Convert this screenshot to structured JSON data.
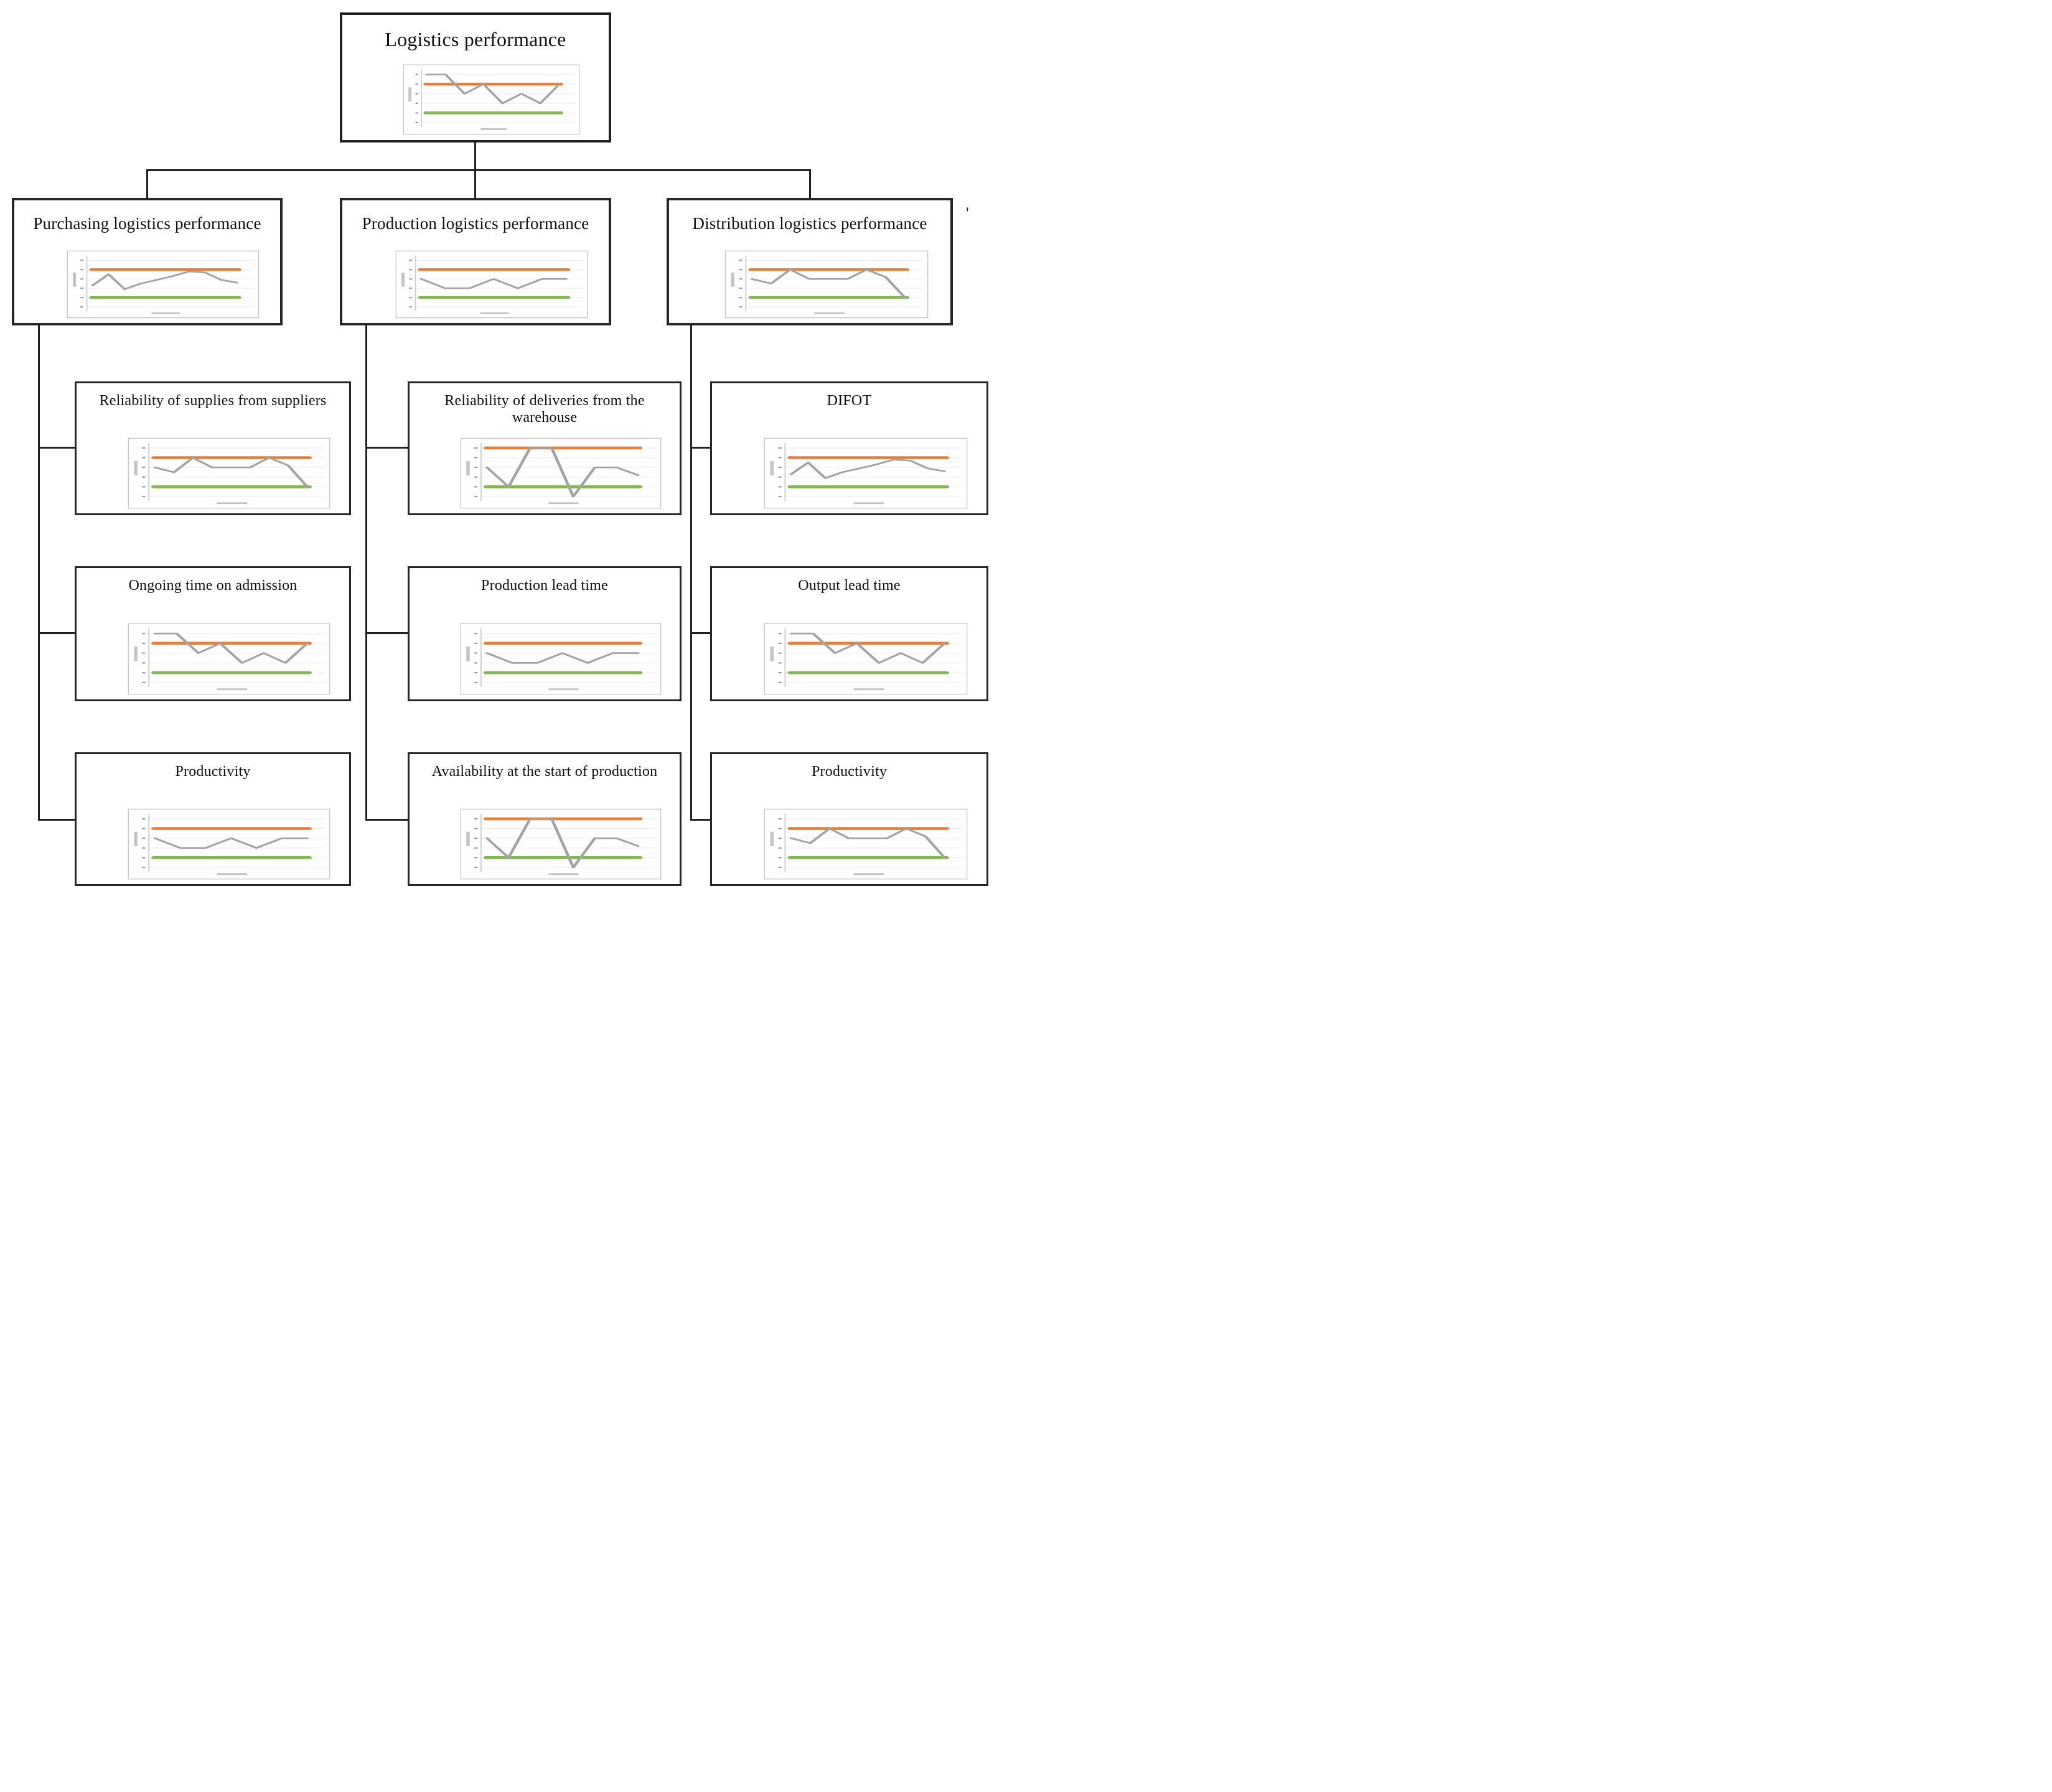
{
  "root": {
    "label": "Logistics performance",
    "chart": "s1"
  },
  "columns": [
    {
      "label": "Purchasing logistics performance",
      "chart": "s2",
      "children": [
        {
          "label": "Reliability of supplies from suppliers",
          "chart": "s4"
        },
        {
          "label": "Ongoing time on admission",
          "chart": "s1"
        },
        {
          "label": "Productivity",
          "chart": "s3"
        }
      ]
    },
    {
      "label": "Production logistics performance",
      "chart": "s3",
      "children": [
        {
          "label": "Reliability of deliveries from the warehouse",
          "chart": "s6"
        },
        {
          "label": "Production lead time",
          "chart": "s3"
        },
        {
          "label": "Availability at the start of production",
          "chart": "s6"
        }
      ]
    },
    {
      "label": "Distribution logistics performance",
      "chart": "s4",
      "children": [
        {
          "label": "DIFOT",
          "chart": "s2"
        },
        {
          "label": "Output lead time",
          "chart": "s1"
        },
        {
          "label": "Productivity",
          "chart": "s4"
        }
      ]
    }
  ],
  "stray_mark": "'",
  "colors": {
    "upper_limit_line": "#ED7D31",
    "lower_limit_line": "#7FBA51",
    "data_line": "#A3A3A3",
    "gridline": "#efefef",
    "box_border": "#262626"
  },
  "chart_data": [
    {
      "id": "s1",
      "type": "line",
      "x": [
        1,
        2,
        3,
        4,
        5,
        6,
        7,
        8
      ],
      "values": [
        5,
        5,
        3,
        4,
        2,
        3,
        2,
        4
      ],
      "upper_limit": 4,
      "lower_limit": 1,
      "ylim": [
        0,
        5.5
      ],
      "grid": true,
      "legend": "none"
    },
    {
      "id": "s2",
      "type": "line",
      "x": [
        1,
        2,
        3,
        4,
        5,
        6,
        7,
        8,
        9,
        10
      ],
      "values": [
        2.3,
        3.5,
        1.9,
        2.5,
        2.9,
        3.3,
        3.8,
        3.7,
        2.9,
        2.6
      ],
      "upper_limit": 4,
      "lower_limit": 1,
      "ylim": [
        0,
        5.5
      ],
      "grid": true,
      "legend": "none"
    },
    {
      "id": "s3",
      "type": "line",
      "x": [
        1,
        2,
        3,
        4,
        5,
        6,
        7
      ],
      "values": [
        3,
        2,
        2,
        3,
        2,
        3,
        3
      ],
      "upper_limit": 4,
      "lower_limit": 1,
      "ylim": [
        0,
        5.5
      ],
      "grid": true,
      "legend": "none"
    },
    {
      "id": "s4",
      "type": "line",
      "x": [
        1,
        2,
        3,
        4,
        5,
        6,
        7,
        8,
        9
      ],
      "values": [
        3,
        2.5,
        4,
        3,
        3,
        3,
        4,
        3.2,
        1
      ],
      "upper_limit": 4,
      "lower_limit": 1,
      "ylim": [
        0,
        5.5
      ],
      "grid": true,
      "legend": "none"
    },
    {
      "id": "s6",
      "type": "line",
      "x": [
        1,
        2,
        3,
        4,
        5,
        6,
        7,
        8
      ],
      "values": [
        3,
        1,
        5,
        5,
        0,
        3,
        3,
        2.2
      ],
      "upper_limit": 5,
      "lower_limit": 1,
      "ylim": [
        0,
        5.5
      ],
      "grid": true,
      "legend": "none"
    }
  ]
}
